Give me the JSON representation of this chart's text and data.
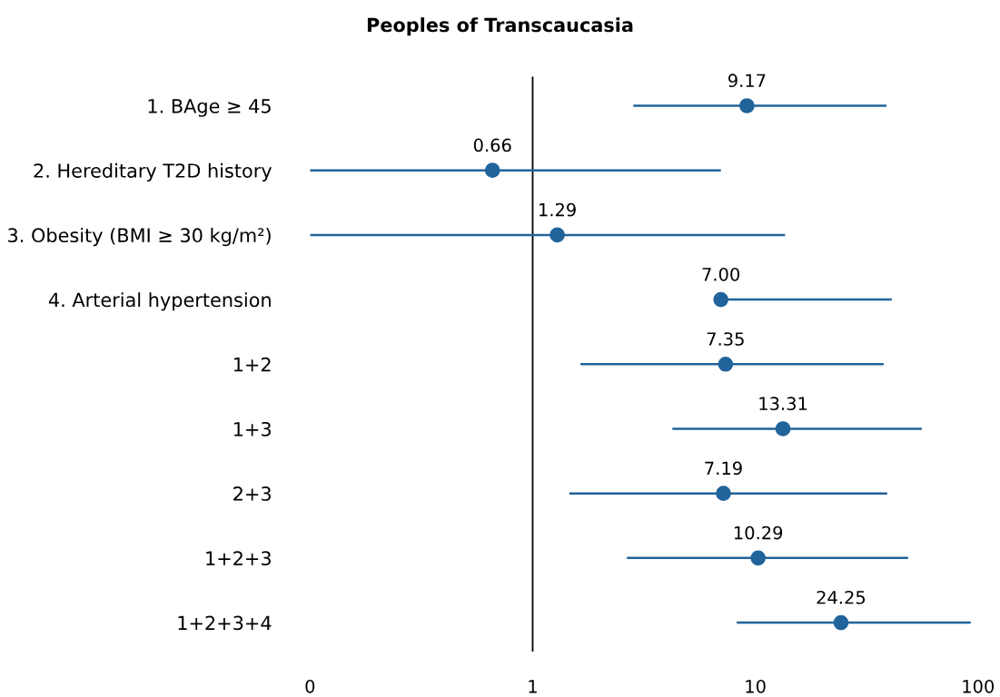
{
  "chart_data": {
    "type": "scatter",
    "orientation": "horizontal",
    "title": "Peoples of Transcaucasia",
    "categories": [
      "1. BAge ≥ 45",
      "2. Hereditary T2D history",
      "3. Obesity (BMI ≥ 30 kg/m²)",
      "4. Arterial hypertension",
      "1+2",
      "1+3",
      "2+3",
      "1+2+3",
      "1+2+3+4"
    ],
    "values": [
      9.17,
      0.66,
      1.29,
      7.0,
      7.35,
      13.31,
      7.19,
      10.29,
      24.25
    ],
    "value_labels": [
      "9.17",
      "0.66",
      "1.29",
      "7.00",
      "7.35",
      "13.31",
      "7.19",
      "10.29",
      "24.25"
    ],
    "errors": [
      [
        2.83,
        38.8
      ],
      [
        0.1,
        7.0
      ],
      [
        0.1,
        13.6
      ],
      [
        7.0,
        41
      ],
      [
        1.64,
        37.7
      ],
      [
        4.24,
        55.9
      ],
      [
        1.46,
        39.1
      ],
      [
        2.65,
        48.6
      ],
      [
        8.25,
        92.8
      ]
    ],
    "color": "#21639b",
    "marker": "circle",
    "log": "x",
    "xlim": [
      0.1,
      100
    ],
    "xticks": [
      {
        "value": 0.1,
        "label": "0"
      },
      1,
      10,
      100
    ],
    "ref_lines": [
      {
        "axis": "x",
        "value": 1,
        "color": "#000000"
      }
    ],
    "grid": false,
    "legend": false
  }
}
